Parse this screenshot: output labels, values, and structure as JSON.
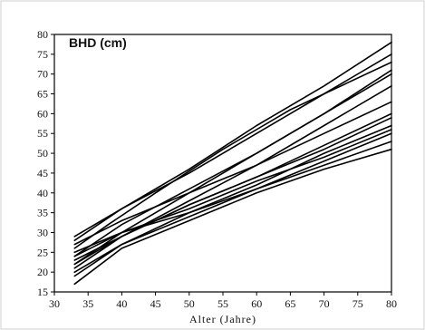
{
  "chart_data": {
    "type": "line",
    "title": "BHD (cm)",
    "xlabel": "Alter (Jahre)",
    "ylabel": "",
    "xlim": [
      30,
      80
    ],
    "ylim": [
      15,
      80
    ],
    "xticks": [
      30,
      35,
      40,
      45,
      50,
      55,
      60,
      65,
      70,
      75,
      80
    ],
    "yticks": [
      15,
      20,
      25,
      30,
      35,
      40,
      45,
      50,
      55,
      60,
      65,
      70,
      75,
      80
    ],
    "grid": false,
    "legend": "none",
    "line_color": "#000000",
    "series": [
      {
        "x": [
          33,
          38,
          42,
          50,
          60,
          70,
          80
        ],
        "y": [
          29,
          34,
          38,
          46,
          57,
          67,
          78
        ]
      },
      {
        "x": [
          33,
          40,
          50,
          60,
          70,
          80
        ],
        "y": [
          28,
          36,
          45,
          55,
          65,
          75
        ]
      },
      {
        "x": [
          33,
          38,
          45,
          55,
          65,
          80
        ],
        "y": [
          26,
          32,
          40,
          51,
          61,
          73
        ]
      },
      {
        "x": [
          33,
          40,
          50,
          60,
          70,
          80
        ],
        "y": [
          24,
          32,
          41,
          50,
          60,
          71
        ]
      },
      {
        "x": [
          33,
          40,
          50,
          60,
          70,
          80
        ],
        "y": [
          25,
          30,
          40,
          50,
          60,
          70
        ]
      },
      {
        "x": [
          33,
          40,
          50,
          60,
          70,
          80
        ],
        "y": [
          23,
          29,
          38,
          47,
          57,
          67
        ]
      },
      {
        "x": [
          33,
          40,
          50,
          60,
          70,
          80
        ],
        "y": [
          27,
          33,
          40,
          47,
          55,
          63
        ]
      },
      {
        "x": [
          33,
          40,
          50,
          60,
          70,
          80
        ],
        "y": [
          22,
          29,
          37,
          44,
          52,
          60
        ]
      },
      {
        "x": [
          33,
          40,
          50,
          60,
          70,
          80
        ],
        "y": [
          21,
          29,
          37,
          44,
          51,
          59
        ]
      },
      {
        "x": [
          33,
          40,
          50,
          60,
          70,
          80
        ],
        "y": [
          20,
          27,
          35,
          42,
          50,
          57
        ]
      },
      {
        "x": [
          33,
          40,
          50,
          60,
          70,
          80
        ],
        "y": [
          24,
          30,
          36,
          43,
          49,
          56
        ]
      },
      {
        "x": [
          33,
          40,
          50,
          60,
          70,
          80
        ],
        "y": [
          19,
          27,
          34,
          41,
          48,
          55
        ]
      },
      {
        "x": [
          33,
          40,
          50,
          60,
          70,
          80
        ],
        "y": [
          22,
          30,
          35,
          41,
          47,
          53
        ]
      },
      {
        "x": [
          33,
          40,
          50,
          60,
          70,
          80
        ],
        "y": [
          17,
          26,
          33,
          40,
          46,
          51
        ]
      }
    ]
  }
}
